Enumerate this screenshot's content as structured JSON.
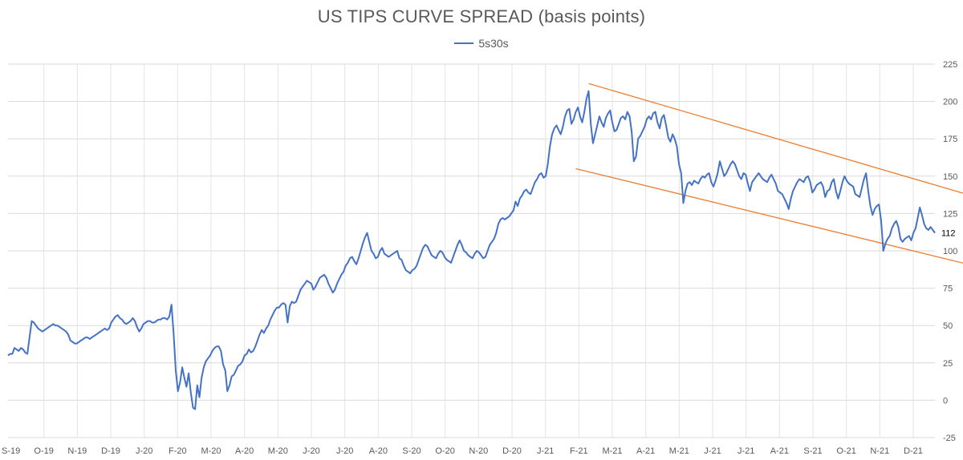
{
  "chart_data": {
    "type": "line",
    "title": "US TIPS CURVE SPREAD (basis points)",
    "series": [
      {
        "name": "5s30s",
        "color": "#4472C4",
        "values": [
          30,
          31,
          31,
          35,
          34,
          33,
          35,
          34,
          32,
          31,
          42,
          53,
          52,
          50,
          48,
          47,
          46,
          47,
          48,
          49,
          50,
          51,
          50,
          50,
          49,
          48,
          47,
          46,
          44,
          40,
          39,
          38,
          38,
          39,
          40,
          41,
          42,
          42,
          41,
          42,
          43,
          44,
          45,
          46,
          47,
          48,
          47,
          48,
          52,
          54,
          56,
          57,
          55,
          54,
          52,
          51,
          52,
          53,
          55,
          53,
          49,
          46,
          48,
          51,
          52,
          53,
          53,
          52,
          52,
          53,
          54,
          54,
          55,
          55,
          54,
          56,
          64,
          45,
          20,
          6,
          12,
          22,
          15,
          9,
          18,
          5,
          -5,
          -6,
          10,
          2,
          15,
          22,
          26,
          28,
          30,
          33,
          35,
          36,
          36,
          33,
          24,
          20,
          6,
          10,
          16,
          17,
          20,
          23,
          24,
          26,
          30,
          31,
          34,
          32,
          33,
          36,
          40,
          44,
          47,
          45,
          48,
          50,
          54,
          57,
          60,
          62,
          62,
          64,
          65,
          64,
          52,
          63,
          66,
          65,
          66,
          70,
          74,
          76,
          78,
          80,
          79,
          78,
          74,
          76,
          79,
          82,
          83,
          84,
          82,
          78,
          75,
          72,
          74,
          78,
          81,
          84,
          86,
          90,
          92,
          95,
          96,
          93,
          91,
          95,
          100,
          105,
          109,
          112,
          106,
          100,
          98,
          95,
          96,
          100,
          102,
          98,
          97,
          96,
          97,
          98,
          99,
          100,
          95,
          94,
          90,
          87,
          86,
          85,
          87,
          88,
          90,
          94,
          98,
          102,
          104,
          103,
          100,
          97,
          96,
          95,
          98,
          100,
          99,
          96,
          94,
          93,
          92,
          96,
          100,
          104,
          107,
          104,
          100,
          99,
          97,
          96,
          95,
          98,
          100,
          99,
          97,
          95,
          96,
          100,
          104,
          106,
          108,
          112,
          118,
          121,
          122,
          121,
          122,
          123,
          125,
          127,
          133,
          130,
          135,
          137,
          140,
          141,
          139,
          138,
          142,
          146,
          148,
          151,
          152,
          149,
          150,
          158,
          170,
          178,
          182,
          184,
          181,
          178,
          183,
          190,
          194,
          195,
          185,
          188,
          193,
          196,
          190,
          186,
          193,
          202,
          207,
          185,
          172,
          178,
          184,
          190,
          186,
          183,
          189,
          192,
          194,
          186,
          180,
          181,
          185,
          189,
          190,
          188,
          193,
          190,
          180,
          160,
          163,
          175,
          177,
          180,
          183,
          188,
          190,
          188,
          192,
          193,
          186,
          182,
          189,
          191,
          184,
          176,
          173,
          178,
          175,
          170,
          158,
          152,
          132,
          140,
          145,
          146,
          144,
          147,
          146,
          145,
          148,
          150,
          149,
          151,
          152,
          146,
          143,
          147,
          152,
          160,
          155,
          150,
          152,
          155,
          158,
          160,
          158,
          154,
          150,
          148,
          152,
          151,
          145,
          140,
          146,
          148,
          150,
          152,
          150,
          148,
          147,
          146,
          149,
          151,
          148,
          145,
          140,
          139,
          138,
          135,
          132,
          128,
          135,
          140,
          143,
          146,
          148,
          147,
          146,
          149,
          150,
          146,
          139,
          141,
          144,
          145,
          146,
          143,
          136,
          140,
          141,
          146,
          148,
          140,
          135,
          140,
          146,
          150,
          147,
          145,
          144,
          143,
          138,
          137,
          136,
          142,
          148,
          152,
          140,
          130,
          124,
          128,
          130,
          131,
          120,
          100,
          105,
          108,
          110,
          115,
          118,
          120,
          116,
          108,
          106,
          108,
          109,
          110,
          107,
          112,
          115,
          122,
          129,
          124,
          118,
          115,
          114,
          116,
          114,
          112
        ]
      }
    ],
    "x_tick_labels": [
      "S-19",
      "O-19",
      "N-19",
      "D-19",
      "J-20",
      "F-20",
      "M-20",
      "A-20",
      "M-20",
      "J-20",
      "J-20",
      "A-20",
      "S-20",
      "O-20",
      "N-20",
      "D-20",
      "J-21",
      "F-21",
      "M-21",
      "A-21",
      "M-21",
      "J-21",
      "J-21",
      "A-21",
      "S-21",
      "O-21",
      "N-21",
      "D-21"
    ],
    "y_ticks": [
      -25,
      0,
      25,
      50,
      75,
      100,
      125,
      150,
      175,
      200,
      225
    ],
    "ylim": [
      -25,
      225
    ],
    "y_axis_position": "right",
    "last_value_label": "112",
    "grid": true,
    "legend_position": "top-center",
    "trend_channel": {
      "color": "#ED7D31",
      "upper": {
        "from_index": 270,
        "from_value": 212,
        "to_index": 440,
        "to_value": 134
      },
      "lower": {
        "from_index": 264,
        "from_value": 155,
        "to_index": 440,
        "to_value": 88
      }
    }
  }
}
